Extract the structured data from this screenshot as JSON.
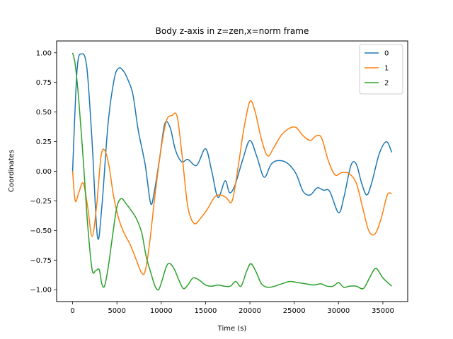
{
  "chart_data": {
    "type": "line",
    "title": "Body z-axis in z=zen,x=norm frame",
    "xlabel": "Time (s)",
    "ylabel": "Coordinates",
    "xlim": [
      -1800,
      37800
    ],
    "ylim": [
      -1.1,
      1.1
    ],
    "xticks": [
      0,
      5000,
      10000,
      15000,
      20000,
      25000,
      30000,
      35000
    ],
    "yticks": [
      -1.0,
      -0.75,
      -0.5,
      -0.25,
      0.0,
      0.25,
      0.5,
      0.75,
      1.0
    ],
    "xtick_labels": [
      "0",
      "5000",
      "10000",
      "15000",
      "20000",
      "25000",
      "30000",
      "35000"
    ],
    "ytick_labels": [
      "−1.00",
      "−0.75",
      "−0.50",
      "−0.25",
      "0.00",
      "0.25",
      "0.50",
      "0.75",
      "1.00"
    ],
    "grid": false,
    "legend_position": "top-right",
    "series": [
      {
        "name": "0",
        "color": "#1f77b4",
        "x": [
          0,
          500,
          1000,
          1600,
          2200,
          2800,
          3300,
          4000,
          4700,
          5200,
          5700,
          6200,
          6800,
          7400,
          8200,
          8800,
          9200,
          9800,
          10400,
          11000,
          11600,
          12300,
          13000,
          14000,
          15000,
          15700,
          16400,
          17200,
          17700,
          18300,
          19200,
          20000,
          20800,
          21600,
          22400,
          23200,
          24200,
          25200,
          26000,
          26800,
          27600,
          28300,
          29000,
          30000,
          30600,
          31400,
          32000,
          32600,
          33200,
          33800,
          34600,
          35400,
          36000
        ],
        "y": [
          0.0,
          0.85,
          0.99,
          0.88,
          0.25,
          -0.55,
          -0.3,
          0.4,
          0.78,
          0.87,
          0.85,
          0.78,
          0.65,
          0.35,
          0.05,
          -0.27,
          -0.18,
          0.1,
          0.4,
          0.37,
          0.18,
          0.08,
          0.1,
          0.05,
          0.19,
          0.0,
          -0.22,
          -0.08,
          -0.18,
          -0.12,
          0.1,
          0.26,
          0.12,
          -0.05,
          0.06,
          0.09,
          0.07,
          -0.02,
          -0.17,
          -0.2,
          -0.14,
          -0.16,
          -0.17,
          -0.35,
          -0.22,
          0.05,
          0.06,
          -0.1,
          -0.2,
          -0.08,
          0.15,
          0.25,
          0.16
        ]
      },
      {
        "name": "1",
        "color": "#ff7f0e",
        "x": [
          0,
          300,
          700,
          1200,
          1700,
          2200,
          2700,
          3200,
          3600,
          4100,
          4600,
          5200,
          5800,
          6500,
          7200,
          7800,
          8200,
          8700,
          9300,
          10000,
          10600,
          11200,
          11800,
          12400,
          13000,
          13700,
          14400,
          15200,
          16000,
          16600,
          17300,
          18000,
          18700,
          19300,
          20000,
          20600,
          21300,
          22000,
          22700,
          23500,
          24400,
          25200,
          26000,
          26800,
          27500,
          28100,
          28800,
          29600,
          30400,
          31200,
          32000,
          32700,
          33400,
          34100,
          34800,
          35500,
          36000
        ],
        "y": [
          0.0,
          -0.25,
          -0.18,
          -0.1,
          -0.3,
          -0.55,
          -0.3,
          0.12,
          0.18,
          0.05,
          -0.2,
          -0.4,
          -0.52,
          -0.62,
          -0.75,
          -0.86,
          -0.84,
          -0.6,
          -0.2,
          0.2,
          0.43,
          0.47,
          0.46,
          0.1,
          -0.3,
          -0.44,
          -0.4,
          -0.32,
          -0.22,
          -0.2,
          -0.22,
          -0.25,
          0.05,
          0.35,
          0.59,
          0.5,
          0.27,
          0.13,
          0.2,
          0.3,
          0.36,
          0.37,
          0.3,
          0.26,
          0.3,
          0.28,
          0.1,
          -0.03,
          -0.01,
          -0.02,
          -0.1,
          -0.3,
          -0.5,
          -0.53,
          -0.4,
          -0.2,
          -0.19
        ]
      },
      {
        "name": "2",
        "color": "#2ca02c",
        "x": [
          0,
          300,
          700,
          1200,
          1700,
          2200,
          2600,
          3000,
          3300,
          3600,
          4000,
          4500,
          5000,
          5500,
          6000,
          6600,
          7200,
          7800,
          8300,
          8800,
          9300,
          9700,
          10100,
          10600,
          11000,
          11500,
          12000,
          12500,
          13000,
          13600,
          14300,
          15000,
          15700,
          16400,
          17100,
          17800,
          18400,
          19000,
          19600,
          20100,
          20700,
          21300,
          22000,
          22800,
          23600,
          24500,
          25400,
          26300,
          27200,
          28000,
          28700,
          29400,
          30000,
          30600,
          31200,
          32000,
          32800,
          33500,
          34200,
          35000,
          36000
        ],
        "y": [
          1.0,
          0.9,
          0.6,
          0.1,
          -0.45,
          -0.83,
          -0.84,
          -0.83,
          -0.95,
          -0.97,
          -0.82,
          -0.55,
          -0.3,
          -0.23,
          -0.27,
          -0.33,
          -0.4,
          -0.52,
          -0.72,
          -0.85,
          -0.97,
          -1.0,
          -0.92,
          -0.8,
          -0.78,
          -0.83,
          -0.92,
          -0.99,
          -0.96,
          -0.9,
          -0.92,
          -0.96,
          -0.97,
          -0.96,
          -0.97,
          -0.97,
          -0.93,
          -0.97,
          -0.85,
          -0.78,
          -0.85,
          -0.95,
          -0.98,
          -0.97,
          -0.95,
          -0.93,
          -0.94,
          -0.95,
          -0.96,
          -0.95,
          -0.97,
          -0.97,
          -0.94,
          -0.98,
          -0.97,
          -0.97,
          -0.99,
          -0.9,
          -0.82,
          -0.9,
          -0.97
        ]
      }
    ]
  }
}
